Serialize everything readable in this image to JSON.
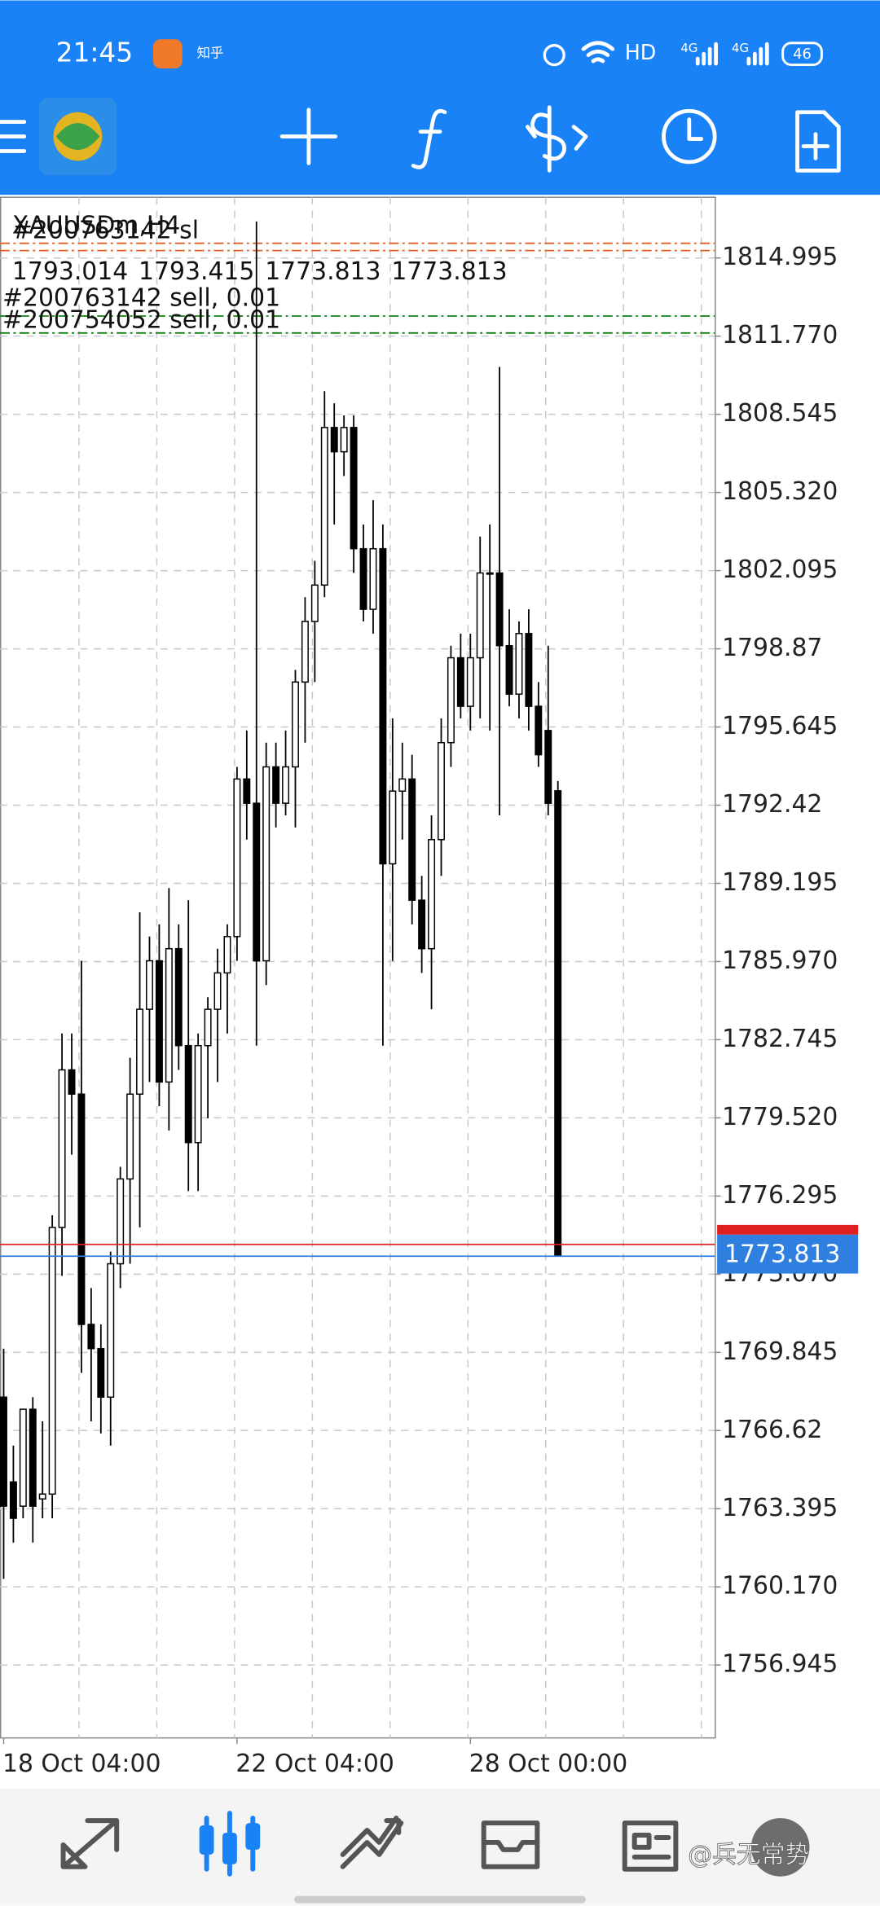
{
  "status_bar": {
    "time": "21:45",
    "app": "知乎",
    "network": "HD",
    "signal_1": "4G",
    "signal_2": "4G",
    "battery": "46"
  },
  "chart_data": {
    "type": "candlestick",
    "title": "XAUUSDm,H4",
    "categories": [
      "18 Oct 04:00",
      null,
      null,
      null,
      null,
      null,
      null,
      null,
      null,
      null,
      null,
      null,
      null,
      null,
      null,
      null,
      null,
      null,
      null,
      null,
      null,
      null,
      null,
      null,
      "22 Oct 04:00",
      null,
      null,
      null,
      null,
      null,
      null,
      null,
      null,
      null,
      null,
      null,
      null,
      null,
      null,
      null,
      null,
      null,
      null,
      null,
      null,
      null,
      null,
      null,
      "28 Oct 00:00",
      null,
      null,
      null,
      null,
      null,
      null,
      null,
      null,
      null
    ],
    "open": [
      1768.0,
      1764.5,
      1763.5,
      1767.5,
      1763.8,
      1764.0,
      1775.0,
      1781.5,
      1780.5,
      1771.0,
      1770.0,
      1768.0,
      1773.5,
      1777.0,
      1780.5,
      1784.0,
      1786.0,
      1781.0,
      1786.5,
      1782.5,
      1778.5,
      1782.5,
      1784.0,
      1785.5,
      1787.0,
      1793.5,
      1792.5,
      1786.0,
      1794.0,
      1792.5,
      1794.0,
      1797.5,
      1800.0,
      1801.5,
      1808.0,
      1807.0,
      1808.0,
      1803.0,
      1800.5,
      1803.0,
      1790.0,
      1793.0,
      1793.5,
      1788.5,
      1786.5,
      1791.0,
      1795.0,
      1798.5,
      1796.5,
      1798.5,
      1802.0,
      1802.0,
      1799.0,
      1797.0,
      1799.5,
      1796.5,
      1795.5,
      1793.014
    ],
    "high": [
      1770.0,
      1766.0,
      1767.5,
      1768.0,
      1767.0,
      1775.5,
      1783.0,
      1783.0,
      1786.0,
      1772.5,
      1771.0,
      1774.0,
      1777.5,
      1782.0,
      1788.0,
      1787.0,
      1787.5,
      1789.0,
      1787.5,
      1788.5,
      1783.0,
      1784.5,
      1786.5,
      1787.5,
      1794.0,
      1795.5,
      1816.5,
      1795.0,
      1795.0,
      1795.5,
      1798.0,
      1801.0,
      1802.5,
      1809.5,
      1809.0,
      1808.5,
      1808.5,
      1804.0,
      1805.0,
      1804.0,
      1796.0,
      1795.0,
      1794.5,
      1789.5,
      1792.0,
      1796.0,
      1799.0,
      1799.5,
      1799.5,
      1803.5,
      1804.0,
      1810.5,
      1800.5,
      1800.0,
      1800.5,
      1797.5,
      1799.0,
      1793.415
    ],
    "low": [
      1760.5,
      1762.0,
      1763.0,
      1762.0,
      1763.0,
      1763.0,
      1773.0,
      1778.0,
      1769.0,
      1767.0,
      1766.5,
      1766.0,
      1772.5,
      1773.5,
      1775.0,
      1781.0,
      1780.0,
      1779.0,
      1781.5,
      1776.5,
      1776.5,
      1779.5,
      1781.0,
      1783.0,
      1786.0,
      1791.0,
      1782.5,
      1785.0,
      1791.5,
      1792.0,
      1791.5,
      1795.0,
      1797.5,
      1801.0,
      1804.0,
      1806.0,
      1802.0,
      1800.0,
      1799.5,
      1782.5,
      1786.0,
      1791.0,
      1787.5,
      1785.5,
      1784.0,
      1789.5,
      1794.0,
      1796.0,
      1795.5,
      1796.0,
      1795.5,
      1792.0,
      1796.5,
      1796.0,
      1795.5,
      1794.0,
      1792.0,
      1773.813
    ],
    "close": [
      1763.5,
      1763.0,
      1767.5,
      1763.5,
      1764.0,
      1775.0,
      1781.5,
      1780.5,
      1771.0,
      1770.0,
      1768.0,
      1773.5,
      1777.0,
      1780.5,
      1784.0,
      1786.0,
      1781.0,
      1786.5,
      1782.5,
      1778.5,
      1782.5,
      1784.0,
      1785.5,
      1787.0,
      1793.5,
      1792.5,
      1786.0,
      1794.0,
      1792.5,
      1794.0,
      1797.5,
      1800.0,
      1801.5,
      1808.0,
      1807.0,
      1808.0,
      1803.0,
      1800.5,
      1803.0,
      1790.0,
      1793.0,
      1793.5,
      1788.5,
      1786.5,
      1791.0,
      1795.0,
      1798.5,
      1796.5,
      1798.5,
      1802.0,
      1802.0,
      1799.0,
      1797.0,
      1799.5,
      1796.5,
      1794.5,
      1792.5,
      1773.813
    ],
    "up_color": "#ffffff",
    "down_color": "#000000",
    "ylim": [
      1753.94,
      1817.5
    ],
    "yticks": [
      1814.995,
      {
        "value": 1811.77,
        "label": "1811.770"
      },
      1808.545,
      {
        "value": 1805.32,
        "label": "1805.320"
      },
      1802.095,
      1798.87,
      1795.645,
      1792.42,
      1789.195,
      {
        "value": 1785.97,
        "label": "1785.970"
      },
      1782.745,
      {
        "value": 1779.52,
        "label": "1779.520"
      },
      1776.295,
      {
        "value": 1773.07,
        "label": "1773.070"
      },
      1769.845,
      1766.62,
      1763.395,
      {
        "value": 1760.17,
        "label": "1760.170"
      },
      1756.945
    ],
    "grid": true,
    "bid": 1773.813,
    "bid_color": "#2f7fe0",
    "ask": 1774.3,
    "ask_color": "#e02020",
    "orders": [
      {
        "label": "#200763142 sell, 0.01",
        "price": 1812.6,
        "color": "#108010"
      },
      {
        "label": "#200754052 sell, 0.01",
        "price": 1811.9,
        "color": "#108010"
      }
    ],
    "stop_losses": [
      {
        "label": "#200763142 sl",
        "price": 1815.6,
        "color": "#e06020"
      },
      {
        "price": 1815.3,
        "color": "#e06020"
      }
    ]
  },
  "bottom_nav": {
    "watermark": "@兵无常势"
  }
}
